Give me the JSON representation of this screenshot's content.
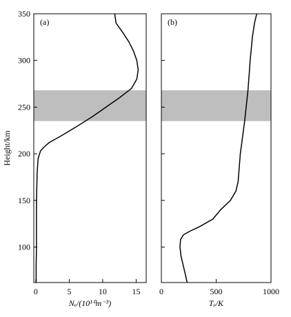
{
  "chart_data": [
    {
      "type": "line",
      "annotation": "(a)",
      "ylabel": "Height/km",
      "xlabel": "Nₑ/(10¹⁰m⁻³)",
      "xlim": [
        -0.3,
        16.5
      ],
      "xticks": [
        0,
        5,
        10,
        15
      ],
      "ylim": [
        62,
        350
      ],
      "yticks": [
        100,
        150,
        200,
        250,
        300,
        350
      ],
      "ytick_labels": true,
      "band": [
        235,
        268
      ],
      "band_color": "#bebebe",
      "series": [
        {
          "color": "#000000",
          "x": [
            0.05,
            0.05,
            0.1,
            0.1,
            0.2,
            0.35,
            0.7,
            1.2,
            2,
            4,
            6.3,
            8.5,
            10.5,
            12.5,
            14.3,
            15.1,
            15.3,
            15.1,
            14.6,
            13.9,
            13,
            12,
            11.8
          ],
          "y": [
            62,
            80,
            100,
            150,
            180,
            195,
            203,
            207,
            212,
            220,
            230,
            240,
            250,
            260,
            270,
            280,
            290,
            300,
            310,
            320,
            330,
            340,
            350
          ]
        }
      ]
    },
    {
      "type": "line",
      "annotation": "(b)",
      "xlabel": "Tₑ/K",
      "xlim": [
        0,
        1000
      ],
      "xticks": [
        0,
        500,
        {
          "value": 1000,
          "label": "1000"
        }
      ],
      "ylim": [
        62,
        350
      ],
      "yticks": [
        100,
        150,
        200,
        250,
        300,
        350
      ],
      "ytick_labels": false,
      "band": [
        235,
        268
      ],
      "band_color": "#bebebe",
      "series": [
        {
          "color": "#000000",
          "x": [
            235,
            220,
            200,
            180,
            170,
            175,
            200,
            260,
            350,
            470,
            540,
            630,
            680,
            700,
            710,
            720,
            760,
            790,
            810,
            830,
            850,
            870
          ],
          "y": [
            62,
            70,
            80,
            90,
            100,
            108,
            113,
            117,
            122,
            130,
            140,
            150,
            160,
            170,
            185,
            200,
            235,
            268,
            300,
            325,
            340,
            350
          ]
        }
      ]
    }
  ]
}
